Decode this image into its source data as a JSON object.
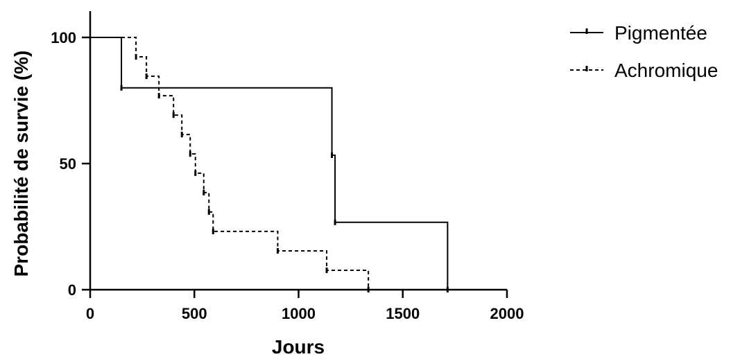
{
  "chart_data": {
    "type": "line",
    "title": "",
    "xlabel": "Jours",
    "ylabel": "Probabilité de survie (%)",
    "xlim": [
      0,
      2000
    ],
    "ylim": [
      0,
      100
    ],
    "xticks": [
      "0",
      "500",
      "1000",
      "1500",
      "2000"
    ],
    "yticks": [
      "0",
      "50",
      "100"
    ],
    "grid": false,
    "legend_position": "top-right",
    "series": [
      {
        "name": "Pigmentée",
        "line_style": "solid",
        "color": "#000000",
        "x": [
          0,
          150,
          1160,
          1175,
          1715
        ],
        "y": [
          100,
          80,
          53.3,
          26.7,
          0
        ],
        "censored_x": []
      },
      {
        "name": "Achromique",
        "line_style": "dashed",
        "color": "#000000",
        "x": [
          0,
          220,
          270,
          330,
          400,
          440,
          480,
          505,
          545,
          570,
          590,
          900,
          1135,
          1335
        ],
        "y": [
          100,
          92.3,
          84.6,
          76.9,
          69.2,
          61.5,
          53.8,
          46.2,
          38.5,
          30.8,
          23.1,
          15.4,
          7.7,
          0
        ],
        "censored_x": []
      }
    ]
  }
}
